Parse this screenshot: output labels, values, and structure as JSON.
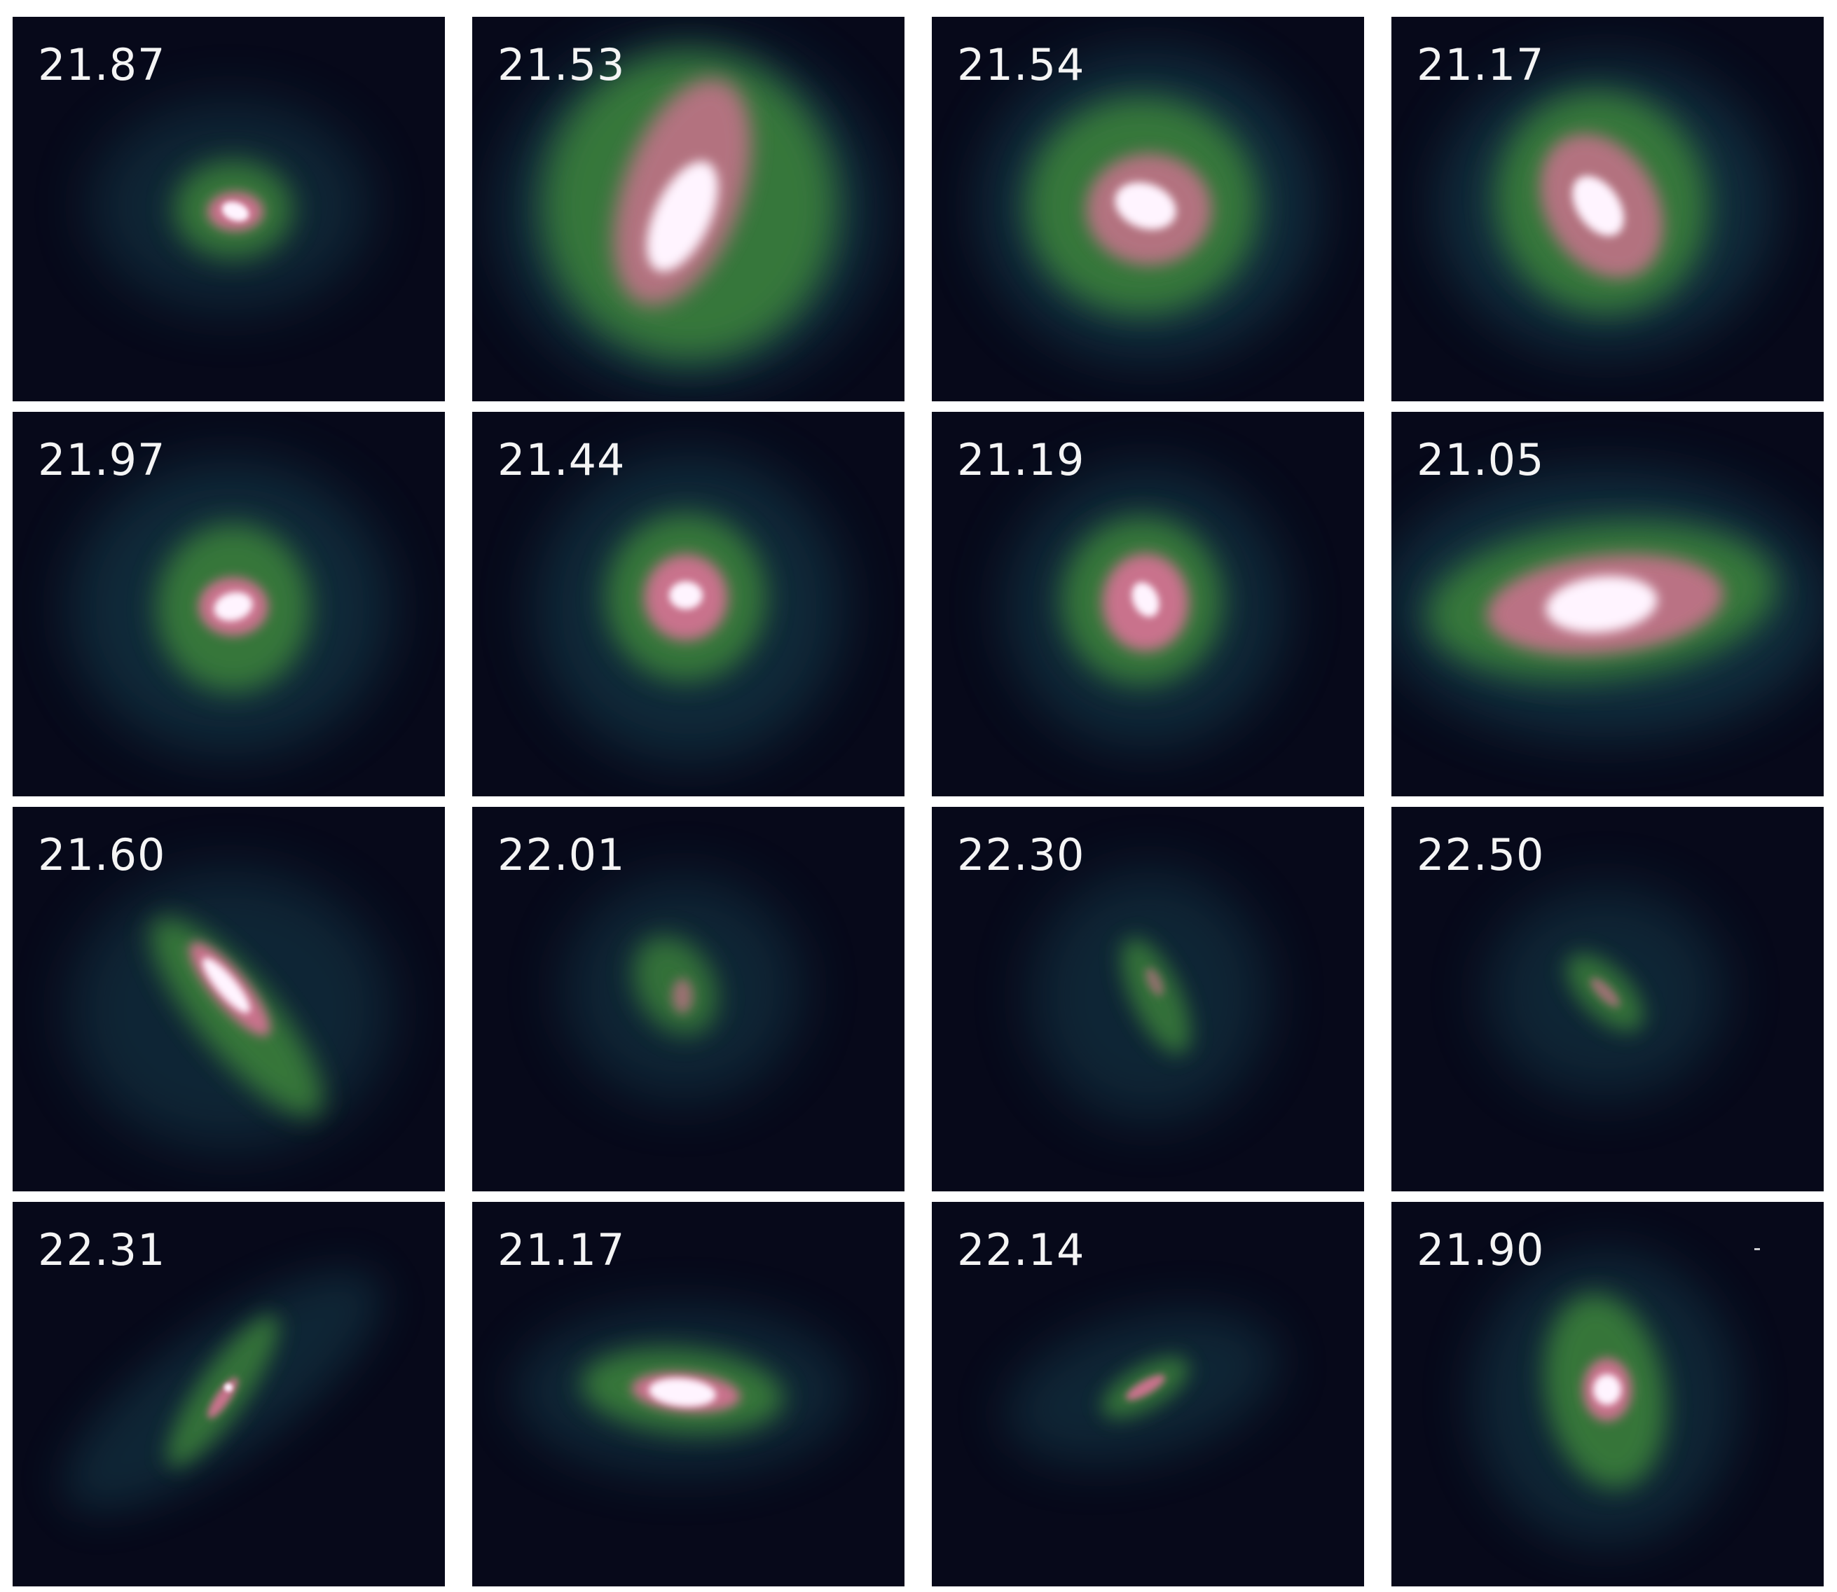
{
  "panels": [
    {
      "label": "21.87"
    },
    {
      "label": "21.53"
    },
    {
      "label": "21.54"
    },
    {
      "label": "21.17"
    },
    {
      "label": "21.97"
    },
    {
      "label": "21.44"
    },
    {
      "label": "21.19"
    },
    {
      "label": "21.05"
    },
    {
      "label": "21.60"
    },
    {
      "label": "22.01"
    },
    {
      "label": "22.30"
    },
    {
      "label": "22.50"
    },
    {
      "label": "22.31"
    },
    {
      "label": "21.17"
    },
    {
      "label": "22.14"
    },
    {
      "label": "21.90"
    }
  ],
  "colors": {
    "background": "#07091a",
    "halo": "#1f5a68",
    "disk": "#3f8a3a",
    "arms": "#c9728c",
    "core": "#fff4ff"
  }
}
